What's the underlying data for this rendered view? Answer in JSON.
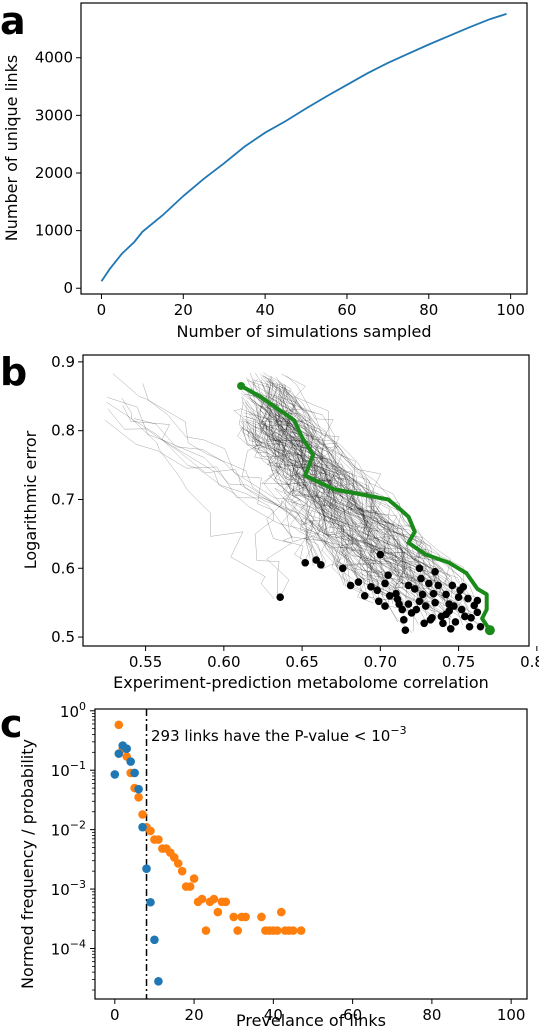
{
  "chart_data": [
    {
      "panel": "a",
      "type": "line",
      "xlabel": "Number of simulations sampled",
      "ylabel": "Number of unique links",
      "xlim": [
        -5,
        104
      ],
      "ylim": [
        -100,
        4950
      ],
      "xticks": [
        0,
        20,
        40,
        60,
        80,
        100
      ],
      "yticks": [
        0,
        1000,
        2000,
        3000,
        4000
      ],
      "color": "#1f77b4",
      "series": [
        {
          "x": [
            0,
            2,
            5,
            8,
            10,
            15,
            20,
            25,
            30,
            35,
            40,
            45,
            50,
            55,
            60,
            65,
            70,
            75,
            80,
            85,
            90,
            95,
            99
          ],
          "y": [
            120,
            330,
            600,
            800,
            980,
            1270,
            1600,
            1900,
            2170,
            2460,
            2700,
            2900,
            3120,
            3330,
            3530,
            3730,
            3910,
            4070,
            4230,
            4380,
            4530,
            4670,
            4760
          ]
        }
      ]
    },
    {
      "panel": "b",
      "type": "scatter",
      "xlabel": "Experiment-prediction metabolome correlation",
      "ylabel": "Logarithmic error",
      "xlim": [
        0.51,
        0.795
      ],
      "ylim": [
        0.487,
        0.91
      ],
      "xticks": [
        0.55,
        0.6,
        0.65,
        0.7,
        0.75,
        0.8
      ],
      "yticks": [
        0.5,
        0.6,
        0.7,
        0.8,
        0.9
      ],
      "highlight_color": "#1a8a1a",
      "highlight_path": {
        "x": [
          0.611,
          0.623,
          0.645,
          0.65,
          0.657,
          0.652,
          0.67,
          0.705,
          0.713,
          0.718,
          0.722,
          0.718,
          0.729,
          0.744,
          0.755,
          0.762,
          0.768,
          0.768,
          0.765,
          0.77
        ],
        "y": [
          0.865,
          0.85,
          0.815,
          0.79,
          0.765,
          0.735,
          0.715,
          0.7,
          0.685,
          0.675,
          0.653,
          0.637,
          0.62,
          0.608,
          0.593,
          0.57,
          0.562,
          0.54,
          0.527,
          0.51
        ]
      },
      "endpoints": {
        "x": [
          0.636,
          0.652,
          0.659,
          0.662,
          0.676,
          0.681,
          0.686,
          0.69,
          0.694,
          0.699,
          0.703,
          0.706,
          0.71,
          0.712,
          0.714,
          0.718,
          0.72,
          0.722,
          0.725,
          0.727,
          0.729,
          0.731,
          0.733,
          0.735,
          0.737,
          0.74,
          0.742,
          0.744,
          0.746,
          0.748,
          0.75,
          0.752,
          0.754,
          0.756,
          0.758,
          0.76,
          0.762,
          0.7,
          0.705,
          0.715,
          0.723,
          0.728,
          0.734,
          0.739,
          0.745,
          0.751,
          0.757,
          0.735,
          0.742,
          0.725,
          0.703,
          0.698,
          0.711,
          0.718,
          0.747,
          0.753,
          0.762,
          0.732,
          0.716,
          0.726,
          0.764,
          0.744
        ],
        "y": [
          0.558,
          0.608,
          0.612,
          0.605,
          0.6,
          0.575,
          0.58,
          0.56,
          0.573,
          0.552,
          0.578,
          0.56,
          0.563,
          0.548,
          0.54,
          0.575,
          0.535,
          0.57,
          0.552,
          0.562,
          0.545,
          0.578,
          0.528,
          0.55,
          0.575,
          0.52,
          0.562,
          0.538,
          0.575,
          0.522,
          0.558,
          0.54,
          0.53,
          0.556,
          0.528,
          0.546,
          0.536,
          0.62,
          0.59,
          0.525,
          0.54,
          0.52,
          0.563,
          0.53,
          0.512,
          0.568,
          0.515,
          0.595,
          0.533,
          0.6,
          0.545,
          0.568,
          0.555,
          0.548,
          0.545,
          0.573,
          0.553,
          0.525,
          0.51,
          0.585,
          0.515,
          0.548
        ]
      },
      "trajectory_count": 140
    },
    {
      "panel": "c",
      "type": "scatter",
      "xlabel": "Prevelance of links",
      "ylabel": "Normed frequency / probability",
      "xlim": [
        -5,
        104
      ],
      "log_y": true,
      "ylim_exp": [
        -4.85,
        0.03
      ],
      "xticks": [
        0,
        20,
        40,
        60,
        80,
        100
      ],
      "ytick_exponents": [
        0,
        -1,
        -2,
        -3,
        -4
      ],
      "threshold_x": 8,
      "annotation": "293 links have the P-value < 10",
      "annotation_exponent": "−3",
      "series": [
        {
          "color": "#ff7f0e",
          "x": [
            1,
            2,
            3,
            4,
            5,
            6,
            7,
            8,
            9,
            10,
            11,
            12,
            13,
            14,
            15,
            16,
            17,
            18,
            19,
            20,
            21,
            22,
            23,
            24,
            25,
            26,
            27,
            28,
            30,
            31,
            32,
            33,
            37,
            38,
            39,
            40,
            41,
            42,
            43,
            44,
            45,
            47
          ],
          "y": [
            0.58,
            0.23,
            0.17,
            0.09,
            0.05,
            0.035,
            0.018,
            0.011,
            0.0095,
            0.0068,
            0.0068,
            0.0048,
            0.0048,
            0.0041,
            0.0034,
            0.0027,
            0.002,
            0.0011,
            0.0011,
            0.0015,
            0.00061,
            0.00068,
            0.0002,
            0.00061,
            0.00068,
            0.00041,
            0.00061,
            0.00061,
            0.00034,
            0.0002,
            0.00034,
            0.00034,
            0.00034,
            0.0002,
            0.0002,
            0.0002,
            0.0002,
            0.00041,
            0.0002,
            0.0002,
            0.0002,
            0.0002
          ]
        },
        {
          "color": "#1f77b4",
          "x": [
            0,
            1,
            2,
            3,
            4,
            5,
            6,
            7,
            8,
            9,
            10,
            11
          ],
          "y": [
            0.085,
            0.19,
            0.26,
            0.23,
            0.14,
            0.09,
            0.048,
            0.011,
            0.0022,
            0.0006,
            0.00014,
            2.8e-05
          ]
        }
      ]
    }
  ]
}
